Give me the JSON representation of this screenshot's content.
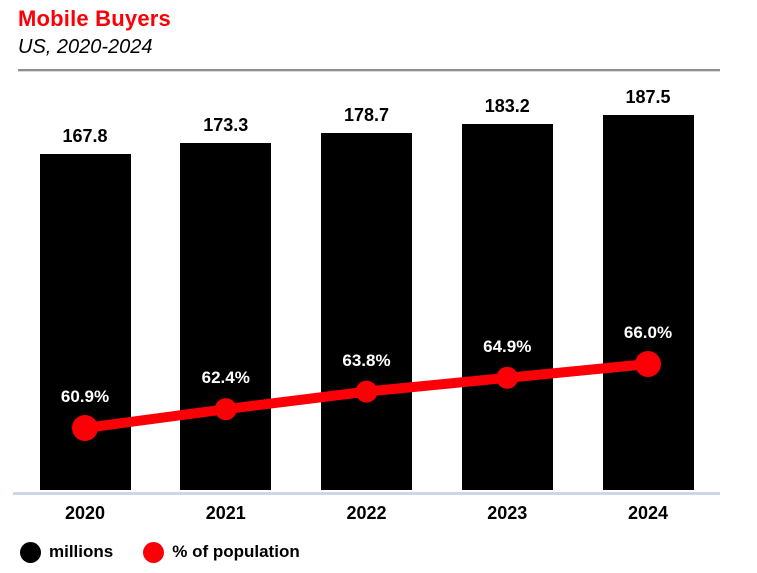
{
  "header": {
    "title": "Mobile Buyers",
    "subtitle": "US, 2020-2024",
    "title_color": "#fb0007"
  },
  "chart_data": {
    "type": "bar",
    "subtype": "combo-bar-line",
    "title": "Mobile Buyers",
    "subtitle": "US, 2020-2024",
    "categories": [
      "2020",
      "2021",
      "2022",
      "2023",
      "2024"
    ],
    "series": [
      {
        "name": "millions",
        "type": "bar",
        "color": "#000000",
        "label_color": "#000000",
        "values": [
          167.8,
          173.3,
          178.7,
          183.2,
          187.5
        ],
        "value_suffix": ""
      },
      {
        "name": "% of population",
        "type": "line",
        "color": "#fb0007",
        "label_color": "#ffffff",
        "values": [
          60.9,
          62.4,
          63.8,
          64.9,
          66.0
        ],
        "value_suffix": "%"
      }
    ],
    "ylim": [
      0,
      208
    ],
    "grid": false,
    "legend_position": "bottom-left",
    "axis_line_color": "#ccd6e8"
  },
  "legend": {
    "items": [
      {
        "label": "millions",
        "color": "#000000"
      },
      {
        "label": "% of population",
        "color": "#fb0007"
      }
    ]
  }
}
